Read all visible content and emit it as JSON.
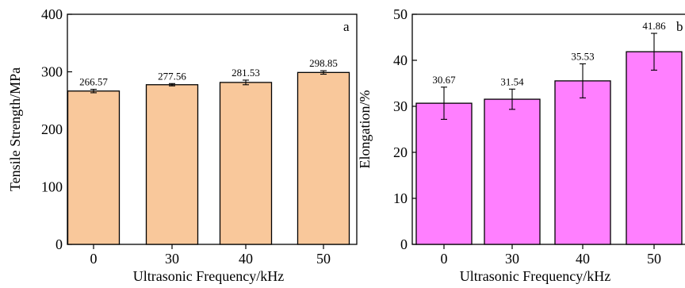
{
  "chart_data": [
    {
      "type": "bar",
      "panel_label": "a",
      "categories": [
        "0",
        "30",
        "40",
        "50"
      ],
      "values": [
        266.57,
        277.56,
        281.53,
        298.85
      ],
      "errors": [
        3,
        2,
        4,
        3
      ],
      "data_labels": [
        "266.57",
        "277.56",
        "281.53",
        "298.85"
      ],
      "xlabel": "Ultrasonic Frequency/kHz",
      "ylabel": "Tensile Strength/MPa",
      "ylim": [
        0,
        400
      ],
      "yticks": [
        0,
        100,
        200,
        300,
        400
      ],
      "bar_color": "#F9C89B",
      "grid": false
    },
    {
      "type": "bar",
      "panel_label": "b",
      "categories": [
        "0",
        "30",
        "40",
        "50"
      ],
      "values": [
        30.67,
        31.54,
        35.53,
        41.86
      ],
      "errors": [
        3.5,
        2.2,
        3.7,
        4.0
      ],
      "data_labels": [
        "30.67",
        "31.54",
        "35.53",
        "41.86"
      ],
      "xlabel": "Ultrasonic Frequency/kHz",
      "ylabel": "Elongation/%",
      "ylim": [
        0,
        50
      ],
      "yticks": [
        0,
        10,
        20,
        30,
        40,
        50
      ],
      "bar_color": "#FF7FFF",
      "grid": false
    }
  ]
}
